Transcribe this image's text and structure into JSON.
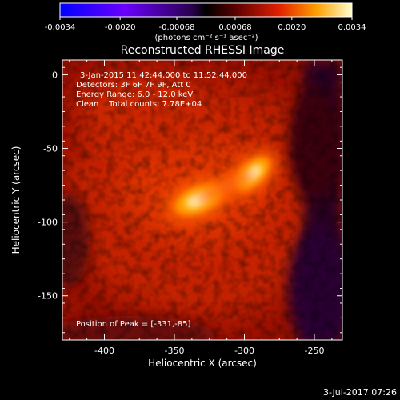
{
  "chart_data": {
    "type": "heatmap",
    "title": "Reconstructed RHESSI Image",
    "xlabel": "Heliocentric X (arcsec)",
    "ylabel": "Heliocentric Y (arcsec)",
    "xlim": [
      -430,
      -230
    ],
    "ylim": [
      -180,
      10
    ],
    "x_ticks": [
      -400,
      -350,
      -300,
      -250
    ],
    "y_ticks": [
      0,
      -50,
      -100,
      -150
    ],
    "colorbar": {
      "range": [
        -0.0034,
        0.0034
      ],
      "ticks": [
        "-0.0034",
        "-0.0020",
        "-0.00068",
        "0.00068",
        "0.0020",
        "0.0034"
      ],
      "label": "(photons cm⁻² s⁻¹ asec⁻²)"
    },
    "sources": [
      {
        "x": -333,
        "y": -85,
        "peak": 0.0034
      },
      {
        "x": -294,
        "y": -67,
        "peak": 0.0029
      }
    ],
    "peak_position": [
      -331,
      -85
    ]
  },
  "annotations": {
    "time_range": "3-Jan-2015 11:42:44.000 to 11:52:44.000",
    "detectors": "Detectors: 3F 6F 7F 9F, Att 0",
    "energy": "Energy Range: 6.0 - 12.0 keV",
    "clean": "Clean    Total counts: 7.78E+04",
    "peak": "Position of Peak = [-331,-85]"
  },
  "footer": {
    "timestamp": "3-Jul-2017 07:26"
  }
}
